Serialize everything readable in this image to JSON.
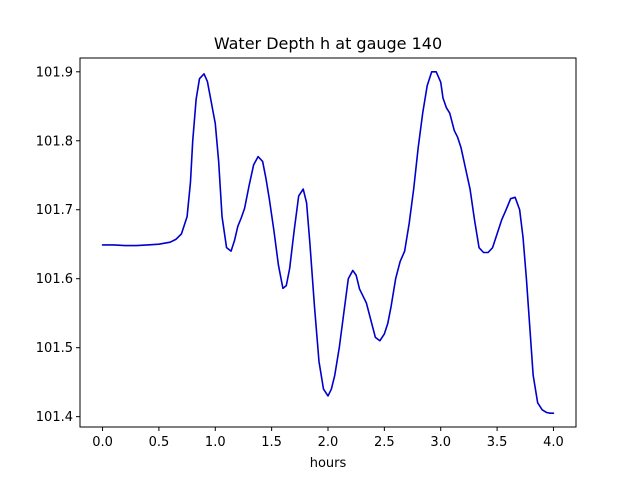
{
  "chart_data": {
    "type": "line",
    "title": "Water Depth h at gauge 140",
    "xlabel": "hours",
    "ylabel": "",
    "xlim": [
      -0.2,
      4.2
    ],
    "ylim": [
      101.385,
      101.92
    ],
    "xticks": [
      0.0,
      0.5,
      1.0,
      1.5,
      2.0,
      2.5,
      3.0,
      3.5,
      4.0
    ],
    "xtick_labels": [
      "0.0",
      "0.5",
      "1.0",
      "1.5",
      "2.0",
      "2.5",
      "3.0",
      "3.5",
      "4.0"
    ],
    "yticks": [
      101.4,
      101.5,
      101.6,
      101.7,
      101.8,
      101.9
    ],
    "ytick_labels": [
      "101.4",
      "101.5",
      "101.6",
      "101.7",
      "101.8",
      "101.9"
    ],
    "grid": false,
    "line_color": "#0000cc",
    "series": [
      {
        "x": [
          0.0,
          0.1,
          0.2,
          0.3,
          0.4,
          0.5,
          0.6,
          0.65,
          0.7,
          0.75,
          0.78,
          0.8,
          0.83,
          0.86,
          0.9,
          0.93,
          0.96,
          1.0,
          1.03,
          1.06,
          1.1,
          1.14,
          1.17,
          1.2,
          1.23,
          1.26,
          1.3,
          1.34,
          1.38,
          1.42,
          1.45,
          1.48,
          1.52,
          1.56,
          1.6,
          1.63,
          1.66,
          1.7,
          1.74,
          1.78,
          1.81,
          1.84,
          1.88,
          1.92,
          1.96,
          2.0,
          2.03,
          2.06,
          2.1,
          2.14,
          2.18,
          2.22,
          2.25,
          2.28,
          2.31,
          2.34,
          2.38,
          2.42,
          2.46,
          2.5,
          2.53,
          2.56,
          2.6,
          2.64,
          2.68,
          2.72,
          2.76,
          2.8,
          2.84,
          2.88,
          2.92,
          2.96,
          3.0,
          3.02,
          3.05,
          3.08,
          3.12,
          3.15,
          3.18,
          3.22,
          3.26,
          3.3,
          3.34,
          3.38,
          3.42,
          3.46,
          3.5,
          3.54,
          3.58,
          3.62,
          3.66,
          3.7,
          3.73,
          3.76,
          3.79,
          3.82,
          3.86,
          3.9,
          3.94,
          3.97,
          4.0
        ],
        "y": [
          101.649,
          101.649,
          101.648,
          101.648,
          101.649,
          101.65,
          101.653,
          101.657,
          101.665,
          101.69,
          101.74,
          101.8,
          101.86,
          101.89,
          101.897,
          101.886,
          101.86,
          101.825,
          101.77,
          101.69,
          101.645,
          101.64,
          101.655,
          101.676,
          101.688,
          101.702,
          101.735,
          101.765,
          101.777,
          101.77,
          101.745,
          101.715,
          101.67,
          101.62,
          101.586,
          101.59,
          101.615,
          101.67,
          101.72,
          101.73,
          101.71,
          101.65,
          101.56,
          101.48,
          101.44,
          101.43,
          101.44,
          101.46,
          101.5,
          101.55,
          101.6,
          101.612,
          101.605,
          101.585,
          101.575,
          101.565,
          101.54,
          101.515,
          101.51,
          101.52,
          101.535,
          101.56,
          101.6,
          101.625,
          101.64,
          101.68,
          101.73,
          101.79,
          101.84,
          101.88,
          101.9,
          101.9,
          101.885,
          101.862,
          101.848,
          101.84,
          101.815,
          101.805,
          101.79,
          101.76,
          101.73,
          101.685,
          101.645,
          101.638,
          101.638,
          101.645,
          101.665,
          101.685,
          101.7,
          101.716,
          101.718,
          101.7,
          101.66,
          101.6,
          101.53,
          101.46,
          101.42,
          101.41,
          101.406,
          101.405,
          101.405
        ]
      }
    ]
  }
}
